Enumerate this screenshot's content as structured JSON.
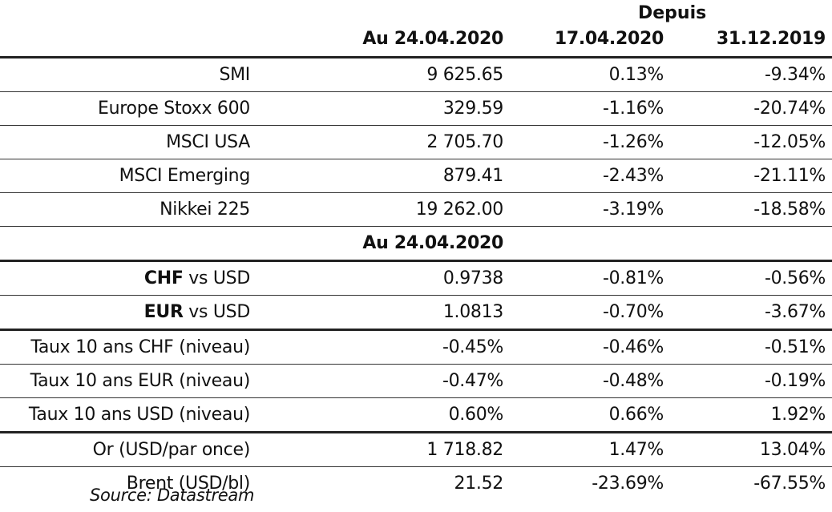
{
  "header": {
    "depuis": "Depuis",
    "col1": "Au 24.04.2020",
    "col2": "17.04.2020",
    "col3": "31.12.2019"
  },
  "equities": [
    {
      "label": "SMI",
      "value": "9 625.65",
      "w": "0.13%",
      "ytd": "-9.34%"
    },
    {
      "label": "Europe Stoxx 600",
      "value": "329.59",
      "w": "-1.16%",
      "ytd": "-20.74%"
    },
    {
      "label": "MSCI USA",
      "value": "2 705.70",
      "w": "-1.26%",
      "ytd": "-12.05%"
    },
    {
      "label": "MSCI Emerging",
      "value": "879.41",
      "w": "-2.43%",
      "ytd": "-21.11%"
    },
    {
      "label": "Nikkei 225",
      "value": "19 262.00",
      "w": "-3.19%",
      "ytd": "-18.58%"
    }
  ],
  "mid_header": "Au 24.04.2020",
  "fx": [
    {
      "bold": "CHF",
      "rest": " vs USD",
      "value": "0.9738",
      "w": "-0.81%",
      "ytd": "-0.56%"
    },
    {
      "bold": "EUR",
      "rest": " vs USD",
      "value": "1.0813",
      "w": "-0.70%",
      "ytd": "-3.67%"
    }
  ],
  "rates": [
    {
      "label": "Taux 10 ans CHF (niveau)",
      "value": "-0.45%",
      "w": "-0.46%",
      "ytd": "-0.51%"
    },
    {
      "label": "Taux 10 ans EUR (niveau)",
      "value": "-0.47%",
      "w": "-0.48%",
      "ytd": "-0.19%"
    },
    {
      "label": "Taux 10 ans USD (niveau)",
      "value": "0.60%",
      "w": "0.66%",
      "ytd": "1.92%"
    }
  ],
  "commodities": [
    {
      "label": "Or (USD/par once)",
      "value": "1 718.82",
      "w": "1.47%",
      "ytd": "13.04%"
    },
    {
      "label": "Brent (USD/bl)",
      "value": "21.52",
      "w": "-23.69%",
      "ytd": "-67.55%"
    }
  ],
  "source": "Source: Datastream"
}
